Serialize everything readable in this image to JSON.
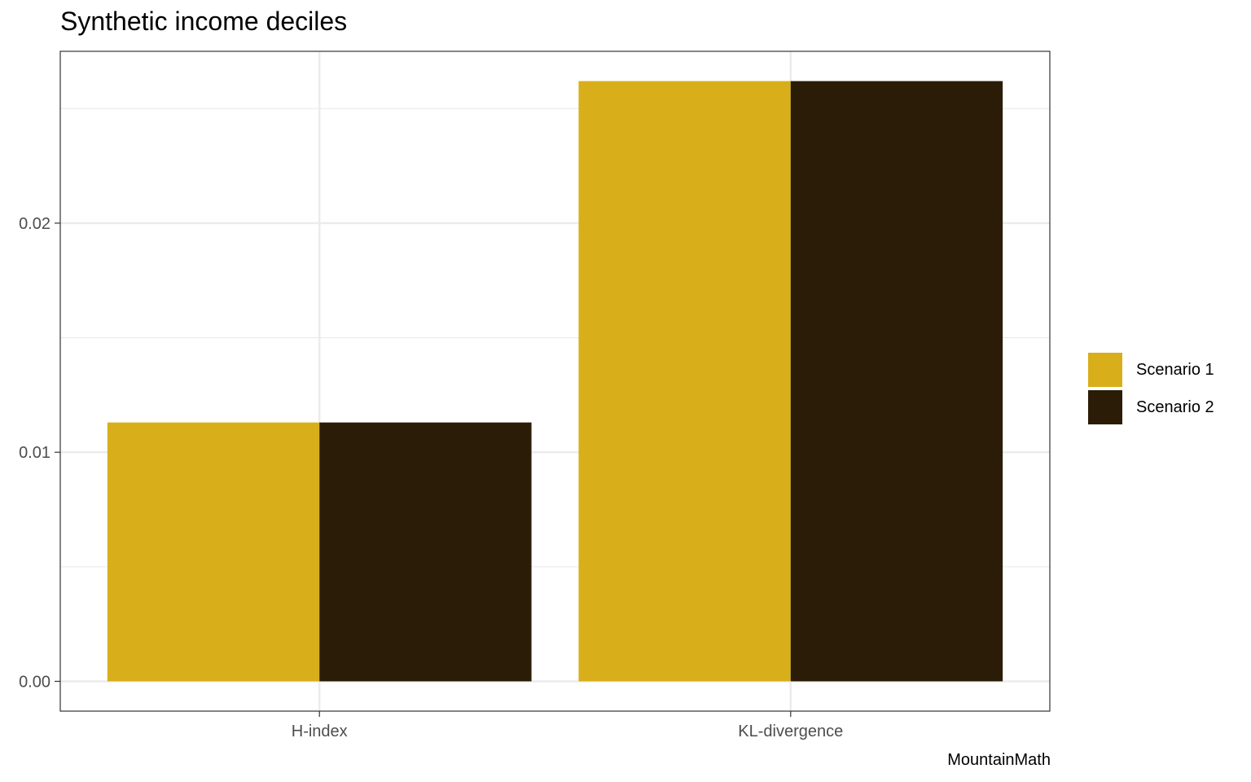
{
  "chart_data": {
    "type": "bar",
    "title": "Synthetic income deciles",
    "caption": "MountainMath",
    "xlabel": "",
    "ylabel": "",
    "categories": [
      "H-index",
      "KL-divergence"
    ],
    "series": [
      {
        "name": "Scenario 1",
        "color": "#D8AE1B",
        "values": [
          0.0113,
          0.0262
        ]
      },
      {
        "name": "Scenario 2",
        "color": "#2B1C07",
        "values": [
          0.0113,
          0.0262
        ]
      }
    ],
    "yticks": [
      "0.00",
      "0.01",
      "0.02"
    ],
    "ytick_values": [
      0,
      0.01,
      0.02
    ],
    "ylim": [
      -0.0013,
      0.0275
    ],
    "grid": true,
    "legend_position": "right"
  }
}
